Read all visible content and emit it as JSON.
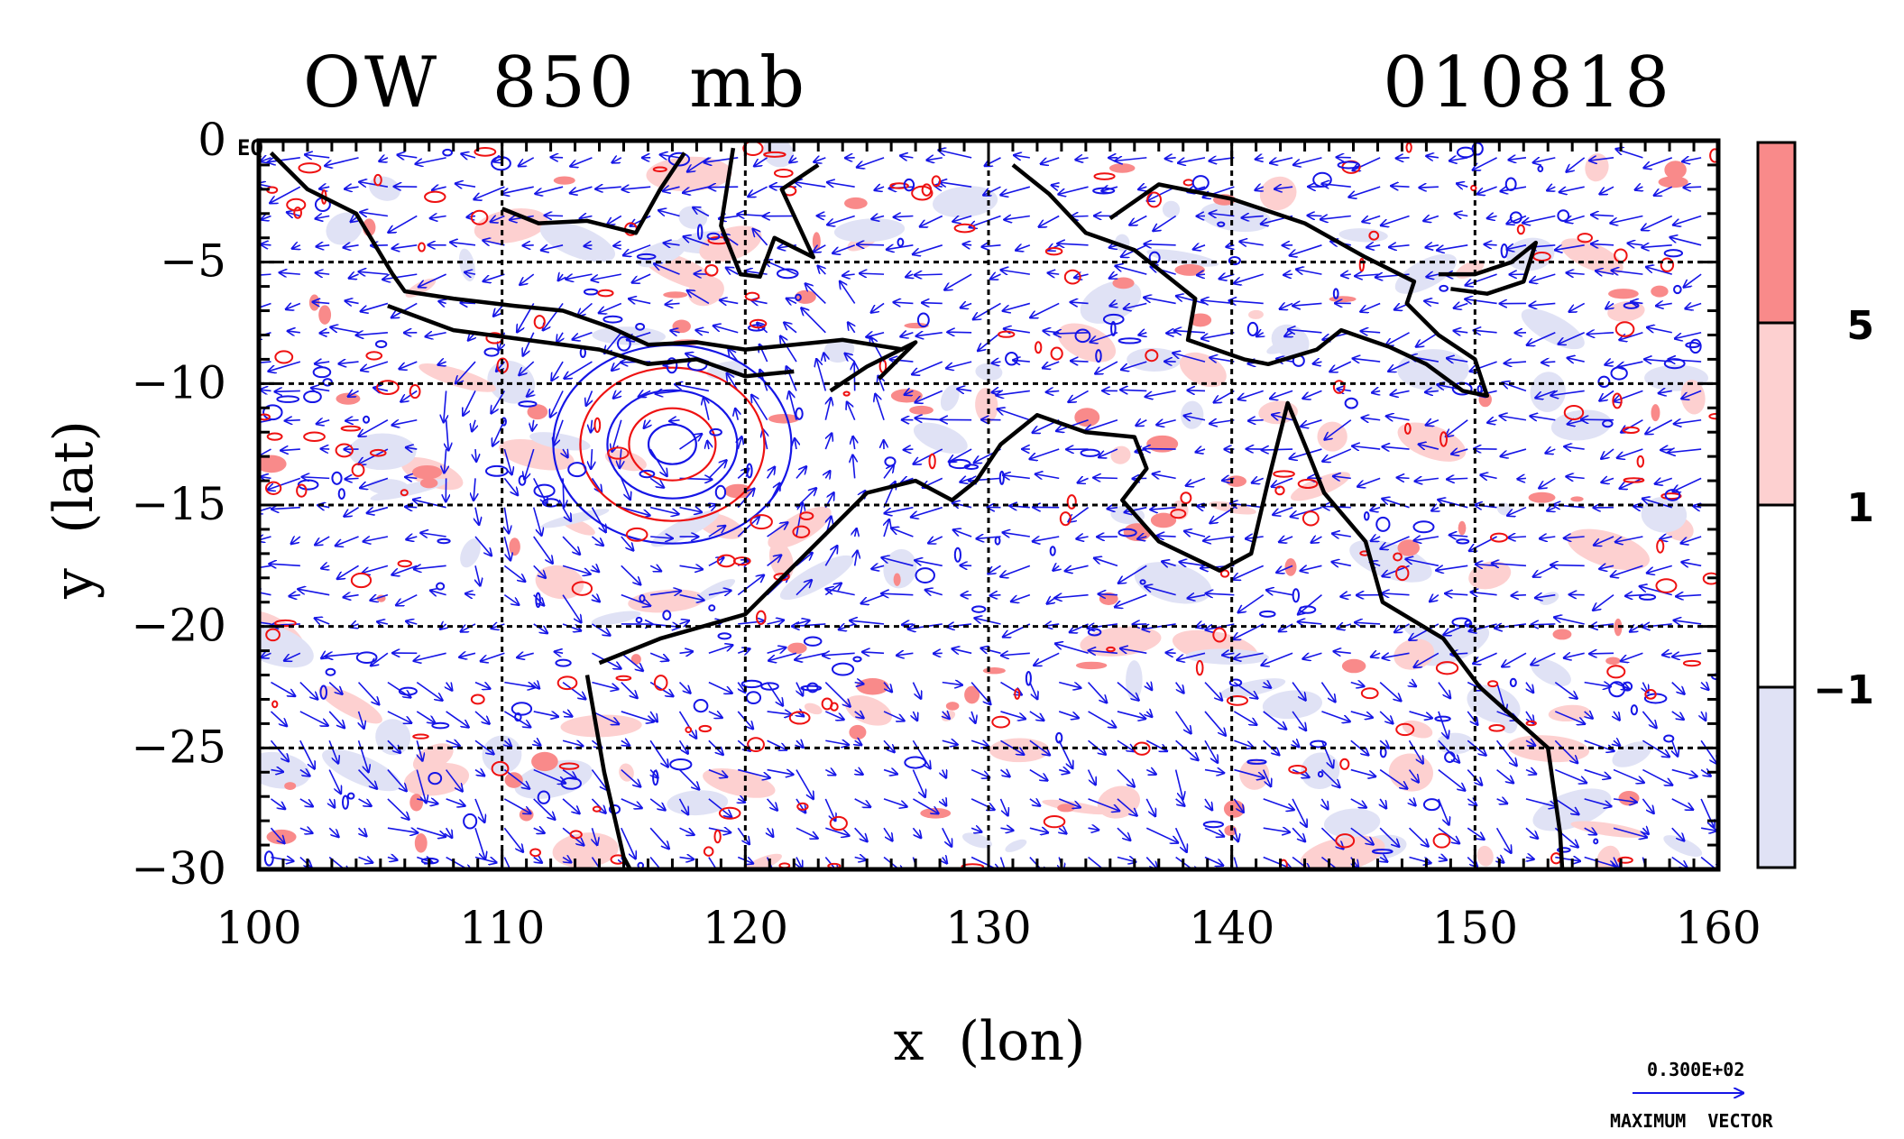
{
  "chart_data": {
    "type": "map",
    "title": "OW  850  mb",
    "date_label": "010818",
    "xlabel": "x  (lon)",
    "ylabel": "y  (lat)",
    "xlim": [
      100,
      160
    ],
    "ylim": [
      -30,
      0
    ],
    "xticks": [
      100,
      110,
      120,
      130,
      140,
      150,
      160
    ],
    "yticks": [
      0,
      -5,
      -10,
      -15,
      -20,
      -25,
      -30
    ],
    "ytick_labels": [
      "0",
      "−5",
      "−10",
      "−15",
      "−20",
      "−25",
      "−30"
    ],
    "grid": true,
    "corner_label": "EQ",
    "colorbar": {
      "levels": [
        -1,
        1,
        5
      ],
      "level_labels": [
        "−1",
        "1",
        "5"
      ],
      "colors": [
        "#e0e2f5",
        "#ffffff",
        "#fdd0d0",
        "#f98a8a"
      ]
    },
    "vector_reference": {
      "value_label": "0.300E+02",
      "caption": "MAXIMUM  VECTOR"
    },
    "colors": {
      "vectors": "#1515e6",
      "positive_contours": "#ee1111",
      "negative_contours": "#1515e6",
      "coast": "#000000"
    }
  }
}
